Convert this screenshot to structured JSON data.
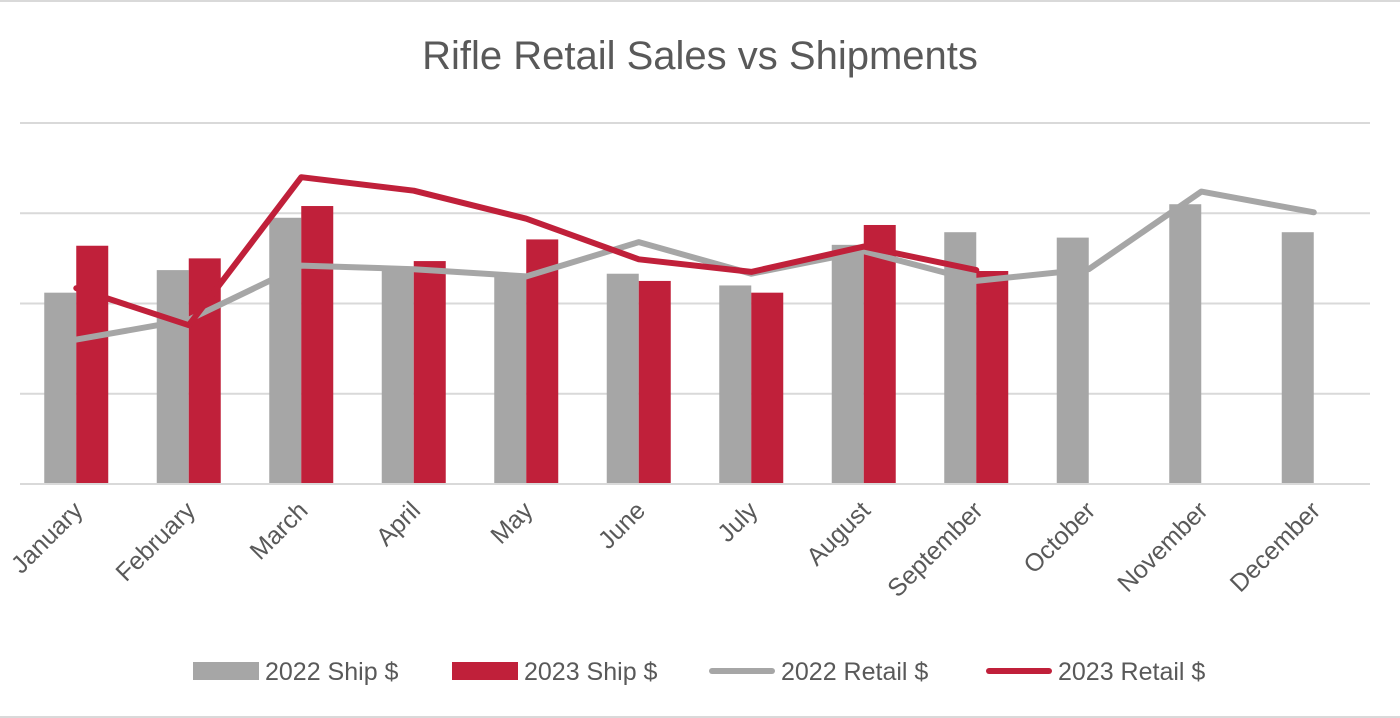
{
  "chart_data": {
    "type": "bar",
    "title": "Rifle Retail Sales vs Shipments",
    "xlabel": "",
    "ylabel": "",
    "ylim": [
      0,
      4
    ],
    "gridlines": [
      0,
      1,
      2,
      3,
      4
    ],
    "grid": true,
    "legend_position": "bottom",
    "categories": [
      "January",
      "February",
      "March",
      "April",
      "May",
      "June",
      "July",
      "August",
      "September",
      "October",
      "November",
      "December"
    ],
    "series": [
      {
        "name": "2022 Ship $",
        "kind": "bar",
        "color": "#a6a6a6",
        "values": [
          2.12,
          2.37,
          2.95,
          2.41,
          2.31,
          2.33,
          2.2,
          2.65,
          2.79,
          2.73,
          3.1,
          2.79
        ]
      },
      {
        "name": "2023 Ship $",
        "kind": "bar",
        "color": "#c0203a",
        "values": [
          2.64,
          2.5,
          3.08,
          2.47,
          2.71,
          2.25,
          2.12,
          2.87,
          2.36,
          null,
          null,
          null
        ]
      },
      {
        "name": "2022 Retail $",
        "kind": "line",
        "color": "#a6a6a6",
        "values": [
          1.6,
          1.82,
          2.42,
          2.38,
          2.3,
          2.68,
          2.33,
          2.58,
          2.25,
          2.38,
          3.24,
          3.01
        ]
      },
      {
        "name": "2023 Retail $",
        "kind": "line",
        "color": "#c0203a",
        "values": [
          2.17,
          1.76,
          3.4,
          3.25,
          2.94,
          2.49,
          2.35,
          2.63,
          2.37,
          null,
          null,
          null
        ]
      }
    ]
  }
}
